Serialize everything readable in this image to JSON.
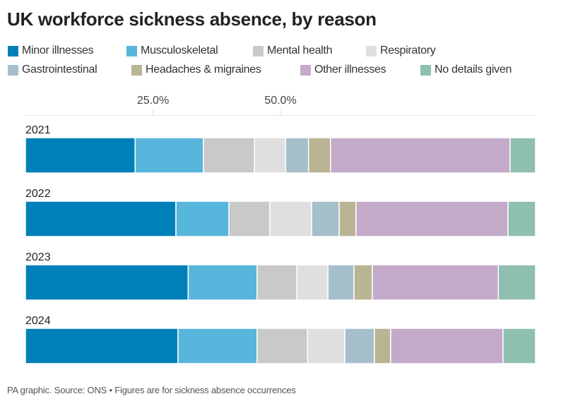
{
  "chart_data": {
    "type": "bar",
    "orientation": "horizontal",
    "stacked": "percent",
    "title": "UK workforce sickness absence, by reason",
    "footer": "PA graphic. Source: ONS • Figures are for sickness absence occurrences",
    "categories": [
      "2021",
      "2022",
      "2023",
      "2024"
    ],
    "xlim": [
      0,
      100
    ],
    "xticks": [
      25,
      50
    ],
    "xtick_labels": [
      "25.0%",
      "50.0%"
    ],
    "legend_position": "top",
    "grid": false,
    "series": [
      {
        "name": "Minor illnesses",
        "color": "#0080b8",
        "values": [
          21.5,
          29.5,
          31.9,
          29.9
        ]
      },
      {
        "name": "Musculoskeletal",
        "color": "#58b6dc",
        "values": [
          13.4,
          10.4,
          13.5,
          15.5
        ]
      },
      {
        "name": "Mental health",
        "color": "#c9c9c9",
        "values": [
          10.0,
          8.0,
          7.8,
          9.9
        ]
      },
      {
        "name": "Respiratory",
        "color": "#dfdfdf",
        "values": [
          6.1,
          8.2,
          6.1,
          7.3
        ]
      },
      {
        "name": "Gastrointestinal",
        "color": "#a5bfcb",
        "values": [
          4.5,
          5.4,
          5.1,
          5.8
        ]
      },
      {
        "name": "Headaches & migraines",
        "color": "#b9b494",
        "values": [
          4.3,
          3.3,
          3.6,
          3.2
        ]
      },
      {
        "name": "Other illnesses",
        "color": "#c4aac9",
        "values": [
          35.2,
          29.8,
          24.7,
          22.0
        ]
      },
      {
        "name": "No details given",
        "color": "#8fbfb1",
        "values": [
          5.0,
          5.4,
          7.3,
          6.4
        ]
      }
    ]
  }
}
